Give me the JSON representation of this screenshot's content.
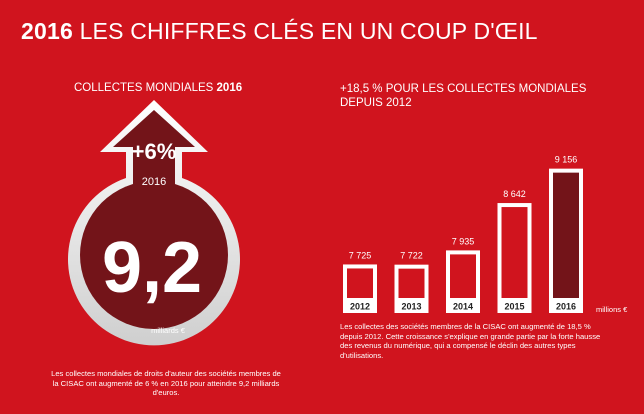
{
  "title_year": "2016",
  "title_rest": "LES CHIFFRES CLÉS EN UN COUP D'ŒIL",
  "left": {
    "header_text": "COLLECTES MONDIALES",
    "header_year": "2016",
    "growth": "+6%",
    "year": "2016",
    "value": "9,2",
    "unit": "milliards €",
    "description": "Les collectes mondiales de droits d'auteur des sociétés membres de la CISAC ont augmenté de 6 % en 2016 pour atteindre 9,2 milliards d'euros."
  },
  "right": {
    "header": "+18,5 % POUR LES COLLECTES MONDIALES DEPUIS 2012",
    "description": "Les collectes des sociétés membres de la CISAC ont augmenté de 18,5 % depuis 2012. Cette croissance s'explique en grande partie par la forte hausse des revenus du numérique, qui a compensé le déclin des autres types d'utilisations."
  },
  "colors": {
    "background": "#d0141e",
    "dark_red": "#731419",
    "bar_fill": "#ffffff",
    "highlight_bar": "#731419"
  },
  "chart_data": {
    "type": "bar",
    "categories": [
      "2012",
      "2013",
      "2014",
      "2015",
      "2016"
    ],
    "values": [
      7725,
      7722,
      7935,
      8642,
      9156
    ],
    "value_labels": [
      "7 725",
      "7 722",
      "7 935",
      "8 642",
      "9 156"
    ],
    "highlight": "2016",
    "unit_label": "millions €",
    "ylim": [
      7000,
      9300
    ]
  }
}
